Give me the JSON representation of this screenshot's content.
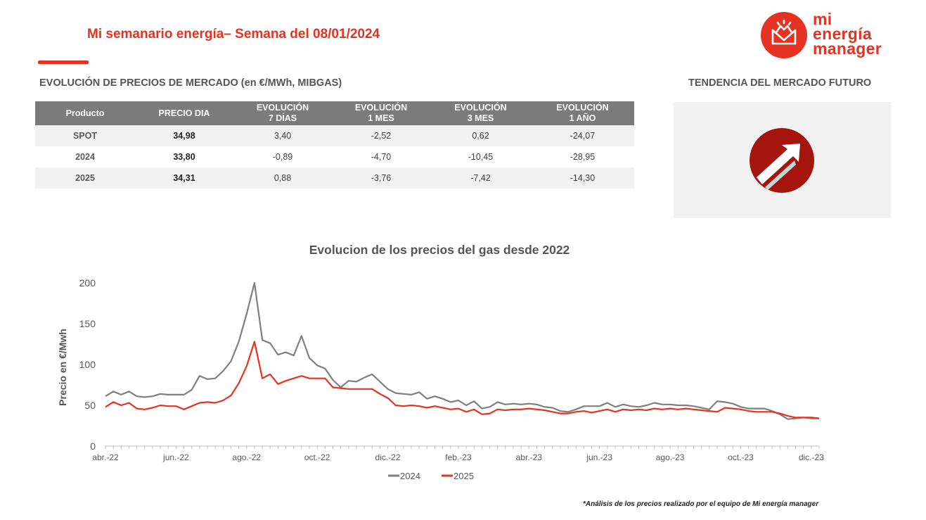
{
  "header": {
    "title": "Mi semanario energía– Semana del 08/01/2024",
    "logo_lines": [
      "mi",
      "energía",
      "manager"
    ]
  },
  "market_table": {
    "section_title": "EVOLUCIÓN DE PRECIOS DE MERCADO (en €/MWh, MIBGAS)",
    "columns": [
      [
        "Producto"
      ],
      [
        "PRECIO DIA"
      ],
      [
        "EVOLUCIÓN",
        "7 DÍAS"
      ],
      [
        "EVOLUCIÓN",
        "1 MES"
      ],
      [
        "EVOLUCIÓN",
        "3 MES"
      ],
      [
        "EVOLUCIÓN",
        "1 AÑO"
      ]
    ],
    "rows": [
      {
        "product": "SPOT",
        "price": "34,98",
        "d7": "3,40",
        "m1": "-2,52",
        "m3": "0,62",
        "y1": "-24,07"
      },
      {
        "product": "2024",
        "price": "33,80",
        "d7": "-0,89",
        "m1": "-4,70",
        "m3": "-10,45",
        "y1": "-28,95"
      },
      {
        "product": "2025",
        "price": "34,31",
        "d7": "0,88",
        "m1": "-3,76",
        "m3": "-7,42",
        "y1": "-14,30"
      }
    ]
  },
  "trend": {
    "section_title": "TENDENCIA DEL MERCADO FUTURO",
    "icon": "arrow-up-right-icon",
    "direction": "up"
  },
  "chart_data": {
    "type": "line",
    "title": "Evolucion de los precios del gas desde 2022",
    "xlabel": "",
    "ylabel": "Precio en €/Mwh",
    "ylim": [
      0,
      200
    ],
    "yticks": [
      0,
      50,
      100,
      150,
      200
    ],
    "grid": false,
    "legend_position": "bottom",
    "x_tick_labels": [
      "abr.-22",
      "jun.-22",
      "ago.-22",
      "oct.-22",
      "dic.-22",
      "feb.-23",
      "abr.-23",
      "jun.-23",
      "ago.-23",
      "oct.-23",
      "dic.-23"
    ],
    "x_tick_index": [
      0,
      9,
      18,
      27,
      36,
      45,
      54,
      63,
      72,
      81,
      90
    ],
    "series": [
      {
        "name": "2024",
        "color": "#7f7f7f",
        "values": [
          61,
          67,
          63,
          67,
          61,
          60,
          61,
          64,
          63,
          63,
          63,
          69,
          86,
          82,
          83,
          92,
          104,
          128,
          162,
          200,
          130,
          126,
          112,
          115,
          111,
          135,
          108,
          99,
          95,
          81,
          72,
          80,
          79,
          84,
          88,
          79,
          70,
          65,
          64,
          63,
          66,
          58,
          61,
          58,
          54,
          56,
          50,
          55,
          46,
          48,
          54,
          51,
          52,
          51,
          52,
          51,
          48,
          47,
          43,
          42,
          45,
          49,
          49,
          49,
          53,
          48,
          51,
          49,
          48,
          50,
          53,
          51,
          51,
          50,
          50,
          49,
          47,
          45,
          55,
          54,
          52,
          48,
          46,
          46,
          46,
          43,
          39,
          33,
          34,
          35,
          34,
          34
        ]
      },
      {
        "name": "2025",
        "color": "#e53222",
        "values": [
          48,
          54,
          50,
          53,
          46,
          45,
          47,
          50,
          49,
          49,
          45,
          49,
          53,
          54,
          53,
          56,
          62,
          77,
          98,
          128,
          83,
          88,
          76,
          80,
          83,
          86,
          83,
          83,
          83,
          72,
          71,
          70,
          70,
          70,
          70,
          64,
          59,
          50,
          49,
          50,
          49,
          47,
          49,
          47,
          45,
          46,
          42,
          45,
          39,
          40,
          45,
          44,
          45,
          45,
          46,
          45,
          44,
          42,
          40,
          40,
          42,
          43,
          41,
          43,
          45,
          42,
          45,
          44,
          45,
          44,
          46,
          45,
          46,
          45,
          46,
          45,
          44,
          43,
          42,
          47,
          46,
          45,
          43,
          42,
          42,
          42,
          40,
          37,
          35,
          35,
          35,
          34
        ]
      }
    ]
  },
  "footnote": "*Análisis de los precios realizado por el equipo de Mi energía manager"
}
